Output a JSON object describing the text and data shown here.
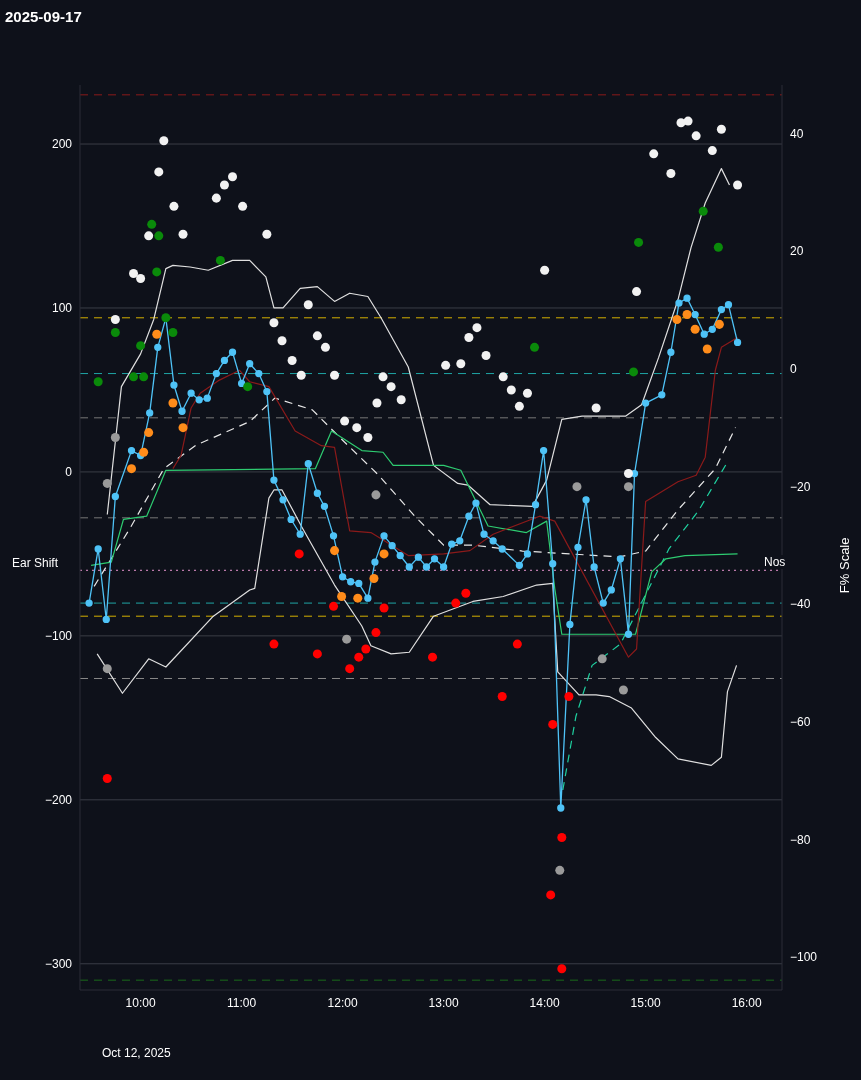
{
  "chart_data": {
    "type": "line",
    "title": "2025-09-17",
    "y2label": "F% Scale",
    "xlim": [
      9.4,
      16.35
    ],
    "xticks": [
      {
        "value": 10,
        "label": "10:00"
      },
      {
        "value": 11,
        "label": "11:00"
      },
      {
        "value": 12,
        "label": "12:00"
      },
      {
        "value": 13,
        "label": "13:00"
      },
      {
        "value": 14,
        "label": "14:00"
      },
      {
        "value": 15,
        "label": "15:00"
      },
      {
        "value": 16,
        "label": "16:00"
      }
    ],
    "ylim": [
      -316,
      236
    ],
    "yticks": [
      {
        "value": -300,
        "label": "−300"
      },
      {
        "value": -200,
        "label": "−200"
      },
      {
        "value": -100,
        "label": "−100"
      },
      0,
      100,
      200
    ],
    "y2lim": [
      -105.6,
      48.2
    ],
    "y2ticks": [
      {
        "value": -100,
        "label": "−100"
      },
      {
        "value": -80,
        "label": "−80"
      },
      {
        "value": -60,
        "label": "−60"
      },
      {
        "value": -40,
        "label": "−40"
      },
      {
        "value": -20,
        "label": "−20"
      },
      0,
      20,
      40
    ],
    "grid": "y",
    "legend": false,
    "annotations": [
      "Oct 12, 2025",
      "Ear Shift",
      "Nos"
    ],
    "ref_lines": [
      {
        "axis": "y",
        "value": 230,
        "label": null,
        "color": "#8b1a1a",
        "line_style": "dashed"
      },
      {
        "axis": "y",
        "value": 94,
        "label": null,
        "color": "#d4b000",
        "line_style": "dashed"
      },
      {
        "axis": "y",
        "value": 60,
        "label": null,
        "color": "#1fa5a5",
        "line_style": "dashed"
      },
      {
        "axis": "y",
        "value": 33,
        "label": null,
        "color": "#777777",
        "line_style": "dashed"
      },
      {
        "axis": "y",
        "value": -28,
        "label": null,
        "color": "#777777",
        "line_style": "dashed"
      },
      {
        "axis": "y",
        "value": -60,
        "label": null,
        "color": "#e896d0",
        "line_style": "dotted"
      },
      {
        "axis": "y",
        "value": -80,
        "label": null,
        "color": "#1fa5a5",
        "line_style": "dashed"
      },
      {
        "axis": "y",
        "value": -88,
        "label": null,
        "color": "#d4b000",
        "line_style": "dashed"
      },
      {
        "axis": "y",
        "value": -126,
        "label": null,
        "color": "#888888",
        "line_style": "dashed"
      },
      {
        "axis": "y",
        "value": -310,
        "label": null,
        "color": "#1a6b1a",
        "line_style": "dashed"
      }
    ],
    "series": [
      {
        "color": "#e0e0e0",
        "line_style": "solid",
        "marker": "none",
        "x": [
          9.67,
          9.81,
          10.0,
          10.13,
          10.25,
          10.32,
          10.49,
          10.67,
          10.91,
          11.08,
          11.24,
          11.32,
          11.41,
          11.58,
          11.75,
          11.92,
          12.07,
          12.25,
          12.38,
          12.65,
          12.9,
          13.14,
          13.24,
          13.46,
          13.88,
          14.02,
          14.17,
          14.37,
          14.8,
          14.96,
          15.13,
          15.32,
          15.45,
          15.59,
          15.75,
          15.83
        ],
        "values": [
          -26,
          52,
          72,
          93,
          124,
          126,
          125,
          123,
          129,
          129,
          119,
          100,
          100,
          112,
          113,
          104,
          109,
          107,
          94,
          64,
          4,
          -7,
          -8,
          -20,
          -21,
          -5,
          32,
          34,
          34,
          41,
          70,
          105,
          137,
          164,
          185,
          175
        ]
      },
      {
        "color": "#e0e0e0",
        "line_style": "solid",
        "marker": "none",
        "x": [
          9.57,
          9.82,
          10.08,
          10.25,
          10.72,
          11.08,
          11.13,
          11.27,
          11.32,
          11.4,
          11.6,
          11.92,
          12.19,
          12.28,
          12.48,
          12.66,
          12.9,
          13.29,
          13.59,
          13.92,
          14.08,
          14.13,
          14.34,
          14.51,
          14.64,
          14.86,
          15.1,
          15.32,
          15.65,
          15.75,
          15.81,
          15.9
        ],
        "values": [
          -111,
          -135,
          -114,
          -119,
          -88,
          -72,
          -71,
          -16,
          -11,
          -11,
          -34,
          -69,
          -94,
          -106,
          -111,
          -110,
          -88,
          -79,
          -76,
          -69,
          -68,
          -122,
          -136,
          -136,
          -137,
          -144,
          -162,
          -175,
          -179,
          -174,
          -134,
          -118
        ]
      },
      {
        "type": "line",
        "axis": "y2",
        "color": "#e8e8e8",
        "line_style": "dashed",
        "marker": "none",
        "x": [
          9.54,
          9.9,
          10.23,
          10.55,
          11.08,
          11.33,
          11.7,
          11.99,
          12.35,
          12.71,
          13.0,
          13.29,
          13.78,
          14.74,
          15.0,
          15.32,
          15.69,
          15.89
        ],
        "values": [
          -37,
          -27,
          -17,
          -13,
          -9,
          -5,
          -7,
          -12,
          -18,
          -25,
          -30,
          -30,
          -31,
          -32,
          -31,
          -24,
          -17,
          -10
        ]
      },
      {
        "type": "line",
        "color": "#1fd1a0",
        "line_style": "dashed",
        "marker": "none",
        "x": [
          14.18,
          14.31,
          14.47,
          14.75,
          15.23,
          15.52,
          15.81
        ],
        "values": [
          -194,
          -149,
          -118,
          -105,
          -47,
          -24,
          6
        ]
      },
      {
        "type": "line",
        "color": "#2ecc71",
        "line_style": "solid",
        "marker": "none",
        "x": [
          9.51,
          9.71,
          9.83,
          10.06,
          10.25,
          11.73,
          11.89,
          12.19,
          12.4,
          12.5,
          13.0,
          13.17,
          13.44,
          13.82,
          14.02,
          14.1,
          14.17,
          14.9,
          15.06,
          15.2,
          15.39,
          15.91
        ],
        "values": [
          -57,
          -55,
          -29,
          -27,
          1,
          2,
          25,
          13,
          12,
          4,
          4,
          1,
          -33,
          -37,
          -30,
          -71,
          -99,
          -99,
          -61,
          -53,
          -51,
          -50
        ]
      },
      {
        "type": "line",
        "color": "#8b1a1a",
        "line_style": "solid",
        "marker": "none",
        "x": [
          10.32,
          10.4,
          10.5,
          10.59,
          10.78,
          10.98,
          11.08,
          11.27,
          11.53,
          11.79,
          11.92,
          12.07,
          12.28,
          12.65,
          13.0,
          13.26,
          13.49,
          13.95,
          14.1,
          14.83,
          14.91,
          15.0,
          15.32,
          15.5,
          15.59,
          15.69,
          15.75,
          15.91
        ],
        "values": [
          2,
          10,
          39,
          48,
          56,
          62,
          55,
          52,
          25,
          16,
          15,
          -36,
          -37,
          -51,
          -50,
          -48,
          -38,
          -27,
          -30,
          -113,
          -108,
          -18,
          -6,
          -2,
          9,
          62,
          76,
          82
        ]
      },
      {
        "color": "#4fc3f7",
        "line_style": "solid",
        "marker": "circle",
        "x": [
          9.49,
          9.58,
          9.66,
          9.75,
          9.91,
          10.0,
          10.09,
          10.17,
          10.25,
          10.33,
          10.41,
          10.5,
          10.58,
          10.66,
          10.75,
          10.83,
          10.91,
          11.0,
          11.08,
          11.17,
          11.25,
          11.32,
          11.41,
          11.49,
          11.58,
          11.66,
          11.75,
          11.82,
          11.91,
          12.0,
          12.08,
          12.16,
          12.25,
          12.32,
          12.41,
          12.49,
          12.57,
          12.66,
          12.75,
          12.83,
          12.91,
          13.0,
          13.08,
          13.16,
          13.25,
          13.32,
          13.4,
          13.49,
          13.58,
          13.75,
          13.83,
          13.91,
          13.99,
          14.08,
          14.16,
          14.25,
          14.33,
          14.41,
          14.49,
          14.58,
          14.66,
          14.75,
          14.83,
          14.89,
          15.0,
          15.16,
          15.25,
          15.33,
          15.41,
          15.49,
          15.58,
          15.66,
          15.75,
          15.82,
          15.91
        ],
        "values": [
          -80,
          -47,
          -90,
          -15,
          13,
          10,
          36,
          76,
          94,
          53,
          37,
          48,
          44,
          45,
          60,
          68,
          73,
          54,
          66,
          60,
          49,
          -5,
          -17,
          -29,
          -38,
          5,
          -13,
          -21,
          -39,
          -64,
          -67,
          -68,
          -77,
          -55,
          -39,
          -45,
          -51,
          -58,
          -52,
          -58,
          -53,
          -58,
          -44,
          -42,
          -27,
          -19,
          -38,
          -42,
          -47,
          -57,
          -50,
          -20,
          13,
          -56,
          -205,
          -93,
          -46,
          -17,
          -58,
          -80,
          -72,
          -53,
          -99,
          -1,
          42,
          47,
          73,
          103,
          106,
          96,
          84,
          87,
          99,
          102,
          79
        ]
      },
      {
        "type": "scatter",
        "color": "#f2f2f2",
        "marker": "circle",
        "x": [
          10.23,
          10.18,
          10.08,
          9.93,
          10.0,
          9.75,
          10.33,
          10.42,
          10.75,
          10.83,
          10.91,
          11.01,
          11.25,
          11.32,
          11.4,
          11.5,
          11.59,
          11.66,
          11.75,
          11.83,
          11.92,
          12.02,
          12.14,
          12.25,
          12.4,
          12.48,
          12.58,
          12.34,
          13.02,
          13.17,
          13.25,
          13.33,
          13.42,
          13.59,
          13.67,
          13.75,
          13.83,
          14.0,
          14.51,
          14.83,
          14.91,
          15.08,
          15.25,
          15.35,
          15.42,
          15.5,
          15.66,
          15.75,
          15.91
        ],
        "values": [
          202,
          183,
          144,
          121,
          118,
          93,
          162,
          145,
          167,
          175,
          180,
          162,
          145,
          91,
          80,
          68,
          59,
          102,
          83,
          76,
          59,
          31,
          27,
          21,
          58,
          52,
          44,
          42,
          65,
          66,
          82,
          88,
          71,
          58,
          50,
          40,
          48,
          123,
          39,
          -1,
          110,
          194,
          182,
          213,
          214,
          205,
          196,
          209,
          175
        ]
      },
      {
        "type": "scatter",
        "color": "#ff0000",
        "marker": "circle",
        "x": [
          9.67,
          11.32,
          11.75,
          12.23,
          13.58,
          14.08,
          14.17,
          11.57,
          12.89,
          13.22,
          13.73,
          14.06,
          11.91,
          12.07,
          12.16,
          12.33,
          12.41,
          13.12,
          14.17,
          14.24
        ],
        "values": [
          -187,
          -105,
          -111,
          -108,
          -137,
          -154,
          -303,
          -50,
          -113,
          -74,
          -105,
          -258,
          -82,
          -120,
          -113,
          -98,
          -83,
          -80,
          -223,
          -137
        ]
      },
      {
        "type": "scatter",
        "color": "#0a8a0a",
        "marker": "circle",
        "x": [
          9.75,
          9.58,
          9.93,
          10.03,
          10.16,
          10.11,
          10.18,
          10.25,
          10.32,
          10.79,
          10.0,
          11.06,
          15.57,
          15.72,
          14.93,
          14.88,
          13.9
        ],
        "values": [
          85,
          55,
          58,
          58,
          122,
          151,
          144,
          94,
          85,
          129,
          77,
          52,
          159,
          137,
          140,
          61,
          76
        ]
      },
      {
        "type": "scatter",
        "color": "#ff8c1a",
        "marker": "circle",
        "x": [
          10.16,
          10.08,
          10.03,
          9.91,
          10.32,
          10.42,
          11.92,
          12.31,
          12.41,
          11.99,
          12.15,
          15.31,
          15.41,
          15.49,
          15.61,
          15.73
        ],
        "values": [
          84,
          24,
          12,
          2,
          42,
          27,
          -48,
          -65,
          -50,
          -76,
          -77,
          93,
          96,
          87,
          75,
          90
        ]
      },
      {
        "type": "scatter",
        "color": "#9a9a9a",
        "marker": "circle",
        "x": [
          9.67,
          9.67,
          9.75,
          12.33,
          12.04,
          14.32,
          14.83,
          14.57,
          14.78,
          14.15
        ],
        "values": [
          -120,
          -7,
          21,
          -14,
          -102,
          -9,
          -9,
          -114,
          -133,
          -243
        ]
      }
    ]
  }
}
